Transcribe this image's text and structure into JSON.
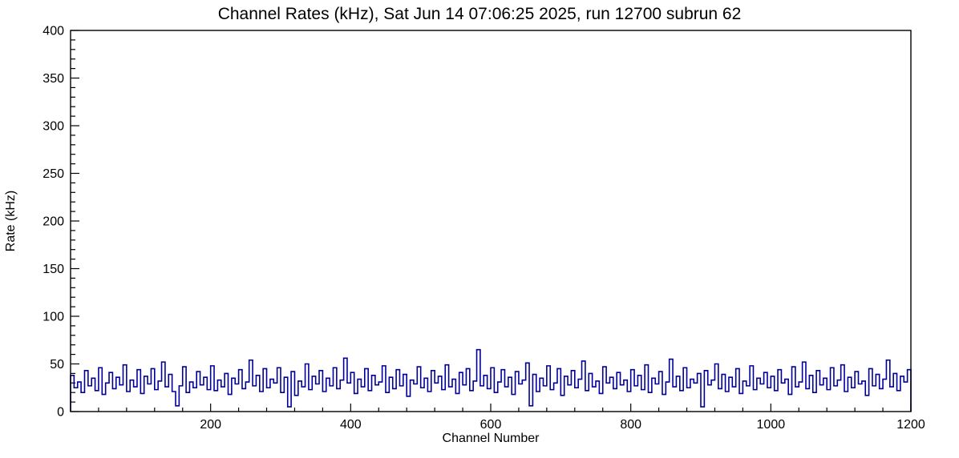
{
  "title": "Channel Rates (kHz), Sat Jun 14 07:06:25 2025, run 12700 subrun 62",
  "chart_data": {
    "type": "line",
    "style": "step-histogram",
    "title": "Channel Rates (kHz), Sat Jun 14 07:06:25 2025, run 12700 subrun 62",
    "xlabel": "Channel Number",
    "ylabel": "Rate (kHz)",
    "xlim": [
      0,
      1200
    ],
    "ylim": [
      0,
      400
    ],
    "x_ticks_major": [
      200,
      400,
      600,
      800,
      1000,
      1200
    ],
    "y_ticks_major": [
      0,
      50,
      100,
      150,
      200,
      250,
      300,
      350,
      400
    ],
    "x_minor_step": 40,
    "y_minor_step": 10,
    "grid": false,
    "legend": null,
    "line_color": "#000099",
    "frame_color": "#000000",
    "background_color": "#ffffff",
    "x_start": 0,
    "bin_width": 5,
    "values": [
      38,
      25,
      31,
      20,
      43,
      27,
      35,
      22,
      46,
      18,
      30,
      41,
      24,
      36,
      28,
      49,
      21,
      33,
      26,
      44,
      19,
      37,
      29,
      45,
      23,
      32,
      52,
      26,
      39,
      21,
      6,
      27,
      47,
      20,
      31,
      25,
      42,
      28,
      36,
      23,
      48,
      22,
      33,
      26,
      40,
      18,
      35,
      29,
      44,
      24,
      31,
      54,
      27,
      38,
      21,
      45,
      25,
      34,
      30,
      46,
      20,
      36,
      5,
      42,
      17,
      32,
      26,
      50,
      23,
      37,
      29,
      43,
      21,
      35,
      27,
      46,
      24,
      33,
      56,
      30,
      41,
      19,
      34,
      26,
      45,
      22,
      38,
      28,
      31,
      48,
      20,
      36,
      24,
      44,
      27,
      39,
      16,
      33,
      29,
      47,
      25,
      35,
      21,
      43,
      30,
      37,
      23,
      49,
      26,
      34,
      19,
      41,
      28,
      45,
      22,
      32,
      65,
      27,
      38,
      24,
      46,
      20,
      31,
      44,
      26,
      36,
      18,
      42,
      29,
      33,
      51,
      6,
      39,
      21,
      35,
      27,
      48,
      23,
      30,
      45,
      17,
      37,
      28,
      43,
      25,
      34,
      53,
      22,
      40,
      26,
      32,
      19,
      47,
      30,
      36,
      24,
      41,
      28,
      33,
      21,
      44,
      27,
      38,
      23,
      49,
      20,
      35,
      29,
      42,
      18,
      31,
      55,
      26,
      37,
      22,
      46,
      25,
      34,
      30,
      40,
      5,
      43,
      28,
      33,
      50,
      24,
      39,
      21,
      36,
      26,
      45,
      19,
      32,
      27,
      48,
      23,
      35,
      29,
      41,
      25,
      37,
      22,
      44,
      30,
      34,
      18,
      47,
      26,
      31,
      52,
      24,
      38,
      20,
      43,
      28,
      35,
      23,
      46,
      27,
      33,
      49,
      21,
      36,
      25,
      42,
      29,
      32,
      17,
      45,
      27,
      39,
      24,
      34,
      54,
      26,
      40,
      22,
      37,
      31,
      44
    ]
  }
}
